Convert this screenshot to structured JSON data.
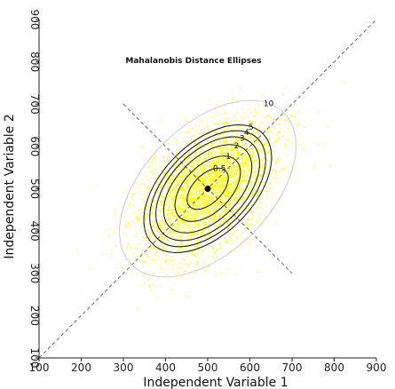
{
  "chart_data": {
    "type": "scatter",
    "title": "Mahalanobis Distance Ellipses",
    "xlabel": "Independent Variable 1",
    "ylabel": "Independent Variable 2",
    "xlim": [
      100,
      900
    ],
    "ylim": [
      100,
      900
    ],
    "x_ticks": [
      "100",
      "200",
      "300",
      "400",
      "500",
      "600",
      "700",
      "800",
      "900"
    ],
    "y_ticks": [
      "100",
      "200",
      "300",
      "400",
      "500",
      "600",
      "700",
      "800",
      "900"
    ],
    "grid": false,
    "center": {
      "x": 500,
      "y": 500
    },
    "points_color": "#ffff00",
    "ellipse_color": "#222222",
    "outer_ellipse_color": "#cccccc",
    "guide_lines": [
      {
        "x1": 100,
        "y1": 100,
        "x2": 900,
        "y2": 900
      },
      {
        "x1": 300,
        "y1": 700,
        "x2": 700,
        "y2": 300
      }
    ],
    "ellipses": [
      {
        "label": "0.5",
        "major": 60,
        "minor": 34
      },
      {
        "label": "1",
        "major": 95,
        "minor": 55
      },
      {
        "label": "2",
        "major": 128,
        "minor": 74
      },
      {
        "label": "3",
        "major": 150,
        "minor": 88
      },
      {
        "label": "4",
        "major": 168,
        "minor": 98
      },
      {
        "label": "5",
        "major": 185,
        "minor": 108
      },
      {
        "label": "10",
        "major": 255,
        "minor": 150
      }
    ],
    "ellipse_angle_deg": 45,
    "scatter_sd_major": 95,
    "scatter_sd_minor": 55,
    "scatter_count": 3500
  }
}
